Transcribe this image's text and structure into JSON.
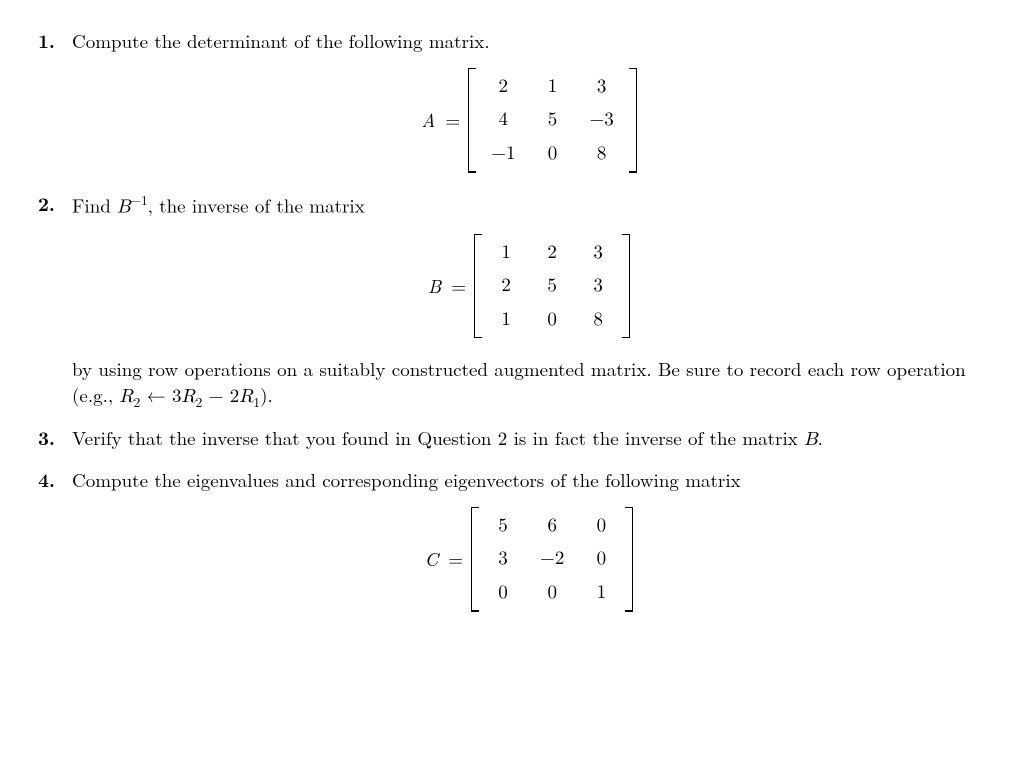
{
  "problems": [
    {
      "num": "1.",
      "text": "Compute the determinant of the following matrix.",
      "matrix_label": "A",
      "matrix": [
        [
          "2",
          "1",
          "3"
        ],
        [
          "4",
          "5",
          "−3"
        ],
        [
          "−1",
          "0",
          "8"
        ]
      ]
    },
    {
      "num": "2.",
      "text_lead": "Find ",
      "sym_B": "B",
      "exp": "−1",
      "text_tail": ", the inverse of the matrix",
      "matrix_label": "B",
      "matrix": [
        [
          "1",
          "2",
          "3"
        ],
        [
          "2",
          "5",
          "3"
        ],
        [
          "1",
          "0",
          "8"
        ]
      ],
      "follow_a": "by using row operations on a suitably constructed augmented matrix. Be sure to record each row operation (e.g., ",
      "row_R2": "R",
      "row_sub2": "2",
      "arrow": " ← ",
      "row_3": "3",
      "row_minus": " − 2",
      "row_R1": "R",
      "row_sub1": "1",
      "follow_b": ")."
    },
    {
      "num": "3.",
      "text_a": "Verify that the inverse that you found in Question 2 is in fact the inverse of the matrix ",
      "sym_B": "B",
      "text_b": "."
    },
    {
      "num": "4.",
      "text": "Compute the eigenvalues and corresponding eigenvectors of the following matrix",
      "matrix_label": "C",
      "matrix": [
        [
          "5",
          "6",
          "0"
        ],
        [
          "3",
          "−2",
          "0"
        ],
        [
          "0",
          "0",
          "1"
        ]
      ]
    }
  ],
  "eq": "="
}
